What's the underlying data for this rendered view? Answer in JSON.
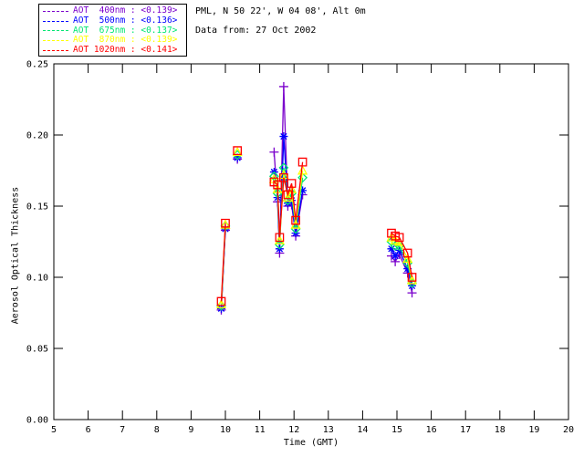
{
  "header": {
    "station": "PML, N 50 22', W 04 08', Alt 0m",
    "date_line": "Data from: 27 Oct 2002"
  },
  "chart_data": {
    "type": "line",
    "title": "",
    "xlabel": "Time (GMT)",
    "ylabel": "Aerosol Optical Thickness",
    "xlim": [
      5,
      20
    ],
    "ylim": [
      0,
      0.25
    ],
    "xticks": [
      5,
      6,
      7,
      8,
      9,
      10,
      11,
      12,
      13,
      14,
      15,
      16,
      17,
      18,
      19,
      20
    ],
    "yticks": [
      0.0,
      0.05,
      0.1,
      0.15,
      0.2,
      0.25
    ],
    "grid": false,
    "legend_position": "top-left-outside",
    "x_groups": [
      [
        9.88,
        10.0
      ],
      [
        10.35
      ],
      [
        11.42,
        11.52,
        11.58,
        11.7,
        11.82,
        11.93,
        12.05,
        12.25
      ],
      [
        14.84,
        14.95,
        15.07,
        15.31,
        15.44
      ]
    ],
    "series": [
      {
        "name": "AOT 400nm",
        "legend_label": "AOT  400nm : <0.139>",
        "mean_aot": 0.139,
        "color": "#7a00cc",
        "marker": "plus",
        "y_groups": [
          [
            0.077,
            0.133
          ],
          [
            0.183
          ],
          [
            0.188,
            0.153,
            0.117,
            0.234,
            0.15,
            0.151,
            0.129,
            0.158
          ],
          [
            0.115,
            0.111,
            0.116,
            0.103,
            0.089
          ]
        ]
      },
      {
        "name": "AOT 500nm",
        "legend_label": "AOT  500nm : <0.136>",
        "mean_aot": 0.136,
        "color": "#0000ff",
        "marker": "asterisk",
        "y_groups": [
          [
            0.078,
            0.134
          ],
          [
            0.184
          ],
          [
            0.174,
            0.156,
            0.12,
            0.199,
            0.152,
            0.154,
            0.131,
            0.161
          ],
          [
            0.12,
            0.115,
            0.119,
            0.106,
            0.094
          ]
        ]
      },
      {
        "name": "AOT 675nm",
        "legend_label": "AOT  675nm : <0.137>",
        "mean_aot": 0.137,
        "color": "#00e673",
        "marker": "diamond",
        "y_groups": [
          [
            0.08,
            0.136
          ],
          [
            0.186
          ],
          [
            0.171,
            0.159,
            0.123,
            0.177,
            0.154,
            0.159,
            0.134,
            0.17
          ],
          [
            0.125,
            0.122,
            0.122,
            0.11,
            0.096
          ]
        ]
      },
      {
        "name": "AOT 870nm",
        "legend_label": "AOT  870nm : <0.139>",
        "mean_aot": 0.139,
        "color": "#ffff00",
        "marker": "triangle",
        "y_groups": [
          [
            0.081,
            0.137
          ],
          [
            0.188
          ],
          [
            0.169,
            0.162,
            0.126,
            0.172,
            0.156,
            0.162,
            0.137,
            0.175
          ],
          [
            0.128,
            0.126,
            0.125,
            0.113,
            0.098
          ]
        ]
      },
      {
        "name": "AOT 1020nm",
        "legend_label": "AOT 1020nm : <0.141>",
        "mean_aot": 0.141,
        "color": "#ff0000",
        "marker": "square",
        "y_groups": [
          [
            0.083,
            0.138
          ],
          [
            0.189
          ],
          [
            0.167,
            0.165,
            0.128,
            0.17,
            0.158,
            0.166,
            0.14,
            0.181
          ],
          [
            0.131,
            0.129,
            0.128,
            0.117,
            0.1
          ]
        ]
      }
    ]
  }
}
